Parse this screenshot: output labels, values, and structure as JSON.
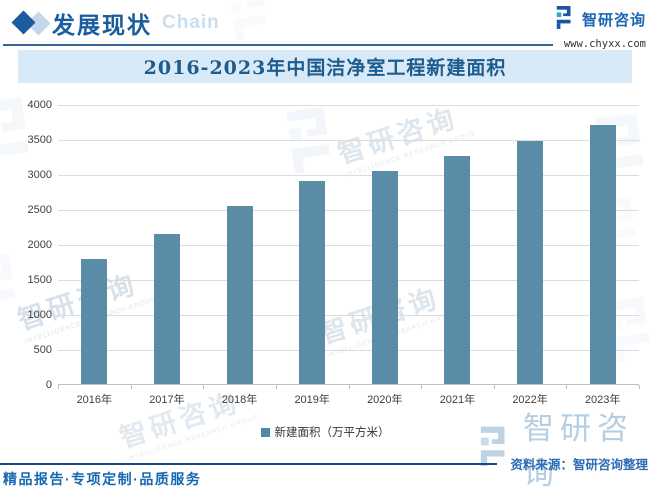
{
  "header": {
    "section_title": "发展现状",
    "section_watermark": "Chain",
    "brand_name": "智研咨询",
    "brand_url": "www.chyxx.com"
  },
  "chart_data": {
    "type": "bar",
    "title": "2016-2023年中国洁净室工程新建面积",
    "categories": [
      "2016年",
      "2017年",
      "2018年",
      "2019年",
      "2020年",
      "2021年",
      "2022年",
      "2023年"
    ],
    "values": [
      1780,
      2150,
      2540,
      2900,
      3050,
      3255,
      3470,
      3695
    ],
    "series_name": "新建面积（万平方米）",
    "ylabel": "",
    "xlabel": "",
    "ylim": [
      0,
      4000
    ],
    "ytick_step": 500,
    "grid": true,
    "legend_position": "bottom",
    "bar_color": "#5B8CA7"
  },
  "legend": {
    "label": "新建面积（万平方米）"
  },
  "footer": {
    "source": "资料来源：智研咨询整理",
    "services": "精品报告·专项定制·品质服务"
  },
  "watermark": {
    "brand_cn": "智研咨询",
    "brand_en": "INTELLIGENCE RESEARCH GROUP"
  },
  "colors": {
    "accent_blue": "#1A5C9E",
    "logo_blue": "#1D55A5",
    "logo_teal": "#2BAAC8",
    "watermark_blue": "#BCD2E6",
    "bar": "#5B8CA7",
    "title_band_bg": "#D8E9F7",
    "title_text": "#1D5C8F"
  }
}
